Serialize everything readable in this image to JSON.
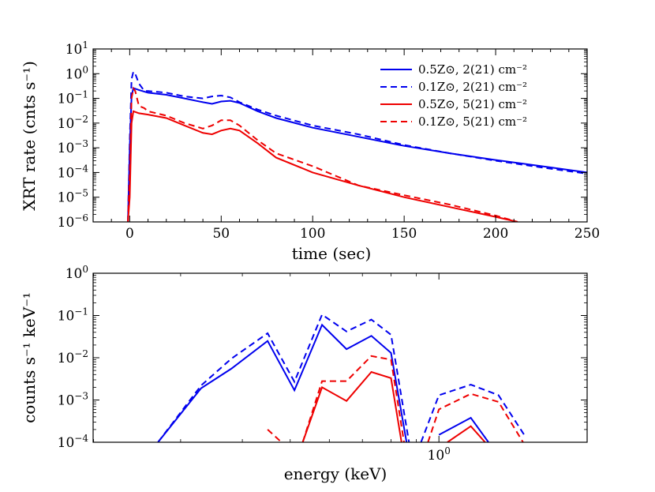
{
  "chart_data": [
    {
      "type": "line",
      "xlabel": "time (sec)",
      "ylabel": "XRT rate (cnts s⁻¹)",
      "xlim": [
        -20,
        250
      ],
      "ylim_log10": [
        -6,
        1
      ],
      "x_ticks": [
        {
          "value": 0,
          "label": "0"
        },
        {
          "value": 50,
          "label": "50"
        },
        {
          "value": 100,
          "label": "100"
        },
        {
          "value": 150,
          "label": "150"
        },
        {
          "value": 200,
          "label": "200"
        },
        {
          "value": 250,
          "label": "250"
        }
      ],
      "y_ticks": [
        {
          "exp": 1,
          "base": "10",
          "sup": "1"
        },
        {
          "exp": 0,
          "base": "10",
          "sup": "0"
        },
        {
          "exp": -1,
          "base": "10",
          "sup": "−1"
        },
        {
          "exp": -2,
          "base": "10",
          "sup": "−2"
        },
        {
          "exp": -3,
          "base": "10",
          "sup": "−3"
        },
        {
          "exp": -4,
          "base": "10",
          "sup": "−4"
        },
        {
          "exp": -5,
          "base": "10",
          "sup": "−5"
        },
        {
          "exp": -6,
          "base": "10",
          "sup": "−6"
        }
      ],
      "legend_position": "top-right",
      "series": [
        {
          "name": "0.5Z⊙, 2(21) cm⁻²",
          "color": "#0000ee",
          "style": "solid",
          "x": [
            -1,
            0,
            1,
            2,
            5,
            10,
            20,
            30,
            40,
            45,
            50,
            55,
            60,
            70,
            80,
            100,
            125,
            150,
            175,
            200,
            225,
            250
          ],
          "y": [
            1e-06,
            0.001,
            0.12,
            0.26,
            0.22,
            0.17,
            0.14,
            0.1,
            0.07,
            0.06,
            0.075,
            0.08,
            0.065,
            0.03,
            0.016,
            0.0065,
            0.0028,
            0.0012,
            0.0006,
            0.00032,
            0.00018,
            0.0001
          ]
        },
        {
          "name": "0.1Z⊙, 2(21) cm⁻²",
          "color": "#0000ee",
          "style": "dashed",
          "x": [
            -1,
            0,
            1,
            2,
            3,
            5,
            8,
            10,
            20,
            30,
            40,
            45,
            50,
            55,
            60,
            70,
            80,
            100,
            125,
            150,
            175,
            200,
            225,
            250
          ],
          "y": [
            1e-06,
            0.002,
            0.6,
            1.2,
            1.0,
            0.4,
            0.2,
            0.2,
            0.17,
            0.12,
            0.1,
            0.12,
            0.13,
            0.11,
            0.07,
            0.035,
            0.02,
            0.008,
            0.0035,
            0.0013,
            0.0006,
            0.0003,
            0.00016,
            9e-05
          ]
        },
        {
          "name": "0.5Z⊙, 5(21) cm⁻²",
          "color": "#ee0000",
          "style": "solid",
          "x": [
            -1,
            0,
            1,
            2,
            5,
            10,
            20,
            30,
            40,
            45,
            50,
            55,
            60,
            70,
            80,
            100,
            125,
            150,
            175,
            200,
            212
          ],
          "y": [
            1e-06,
            1e-05,
            0.01,
            0.03,
            0.025,
            0.022,
            0.016,
            0.008,
            0.004,
            0.0035,
            0.005,
            0.006,
            0.005,
            0.0015,
            0.0004,
            0.0001,
            3e-05,
            1e-05,
            4e-06,
            1.6e-06,
            1e-06
          ]
        },
        {
          "name": "0.1Z⊙, 5(21) cm⁻²",
          "color": "#ee0000",
          "style": "dashed",
          "x": [
            -1,
            0,
            1,
            2,
            3,
            5,
            8,
            10,
            20,
            30,
            40,
            45,
            50,
            55,
            60,
            70,
            80,
            100,
            125,
            150,
            175,
            200,
            212
          ],
          "y": [
            1e-06,
            0.0001,
            0.1,
            0.25,
            0.2,
            0.05,
            0.04,
            0.03,
            0.02,
            0.01,
            0.006,
            0.008,
            0.013,
            0.013,
            0.008,
            0.002,
            0.0006,
            0.00018,
            3e-05,
            1.2e-05,
            5e-06,
            1.8e-06,
            1e-06
          ]
        }
      ]
    },
    {
      "type": "line",
      "xlabel": "energy (keV)",
      "ylabel": "counts s⁻¹ keV⁻¹",
      "x_scale": "log",
      "xlim_log10": [
        -0.7,
        0.3
      ],
      "ylim_log10": [
        -4,
        0
      ],
      "x_ticks": [
        {
          "exp": 0,
          "base": "10",
          "sup": "0"
        }
      ],
      "y_ticks": [
        {
          "exp": 0,
          "base": "10",
          "sup": "0"
        },
        {
          "exp": -1,
          "base": "10",
          "sup": "−1"
        },
        {
          "exp": -2,
          "base": "10",
          "sup": "−2"
        },
        {
          "exp": -3,
          "base": "10",
          "sup": "−3"
        },
        {
          "exp": -4,
          "base": "10",
          "sup": "−4"
        }
      ],
      "series": [
        {
          "name": "0.5Z⊙, 2(21) cm⁻²",
          "color": "#0000ee",
          "style": "solid",
          "segments": [
            {
              "x": [
                0.27,
                0.33,
                0.38,
                0.45,
                0.51,
                0.58,
                0.65,
                0.73,
                0.8,
                0.86
              ],
              "y": [
                0.0001,
                0.0019,
                0.0055,
                0.025,
                0.0017,
                0.06,
                0.016,
                0.033,
                0.013,
                0.0001
              ]
            },
            {
              "x": [
                1.0,
                1.16,
                1.26
              ],
              "y": [
                0.00015,
                0.00038,
                0.0001
              ]
            }
          ]
        },
        {
          "name": "0.1Z⊙, 2(21) cm⁻²",
          "color": "#0000ee",
          "style": "dashed",
          "segments": [
            {
              "x": [
                0.27,
                0.33,
                0.38,
                0.45,
                0.51,
                0.58,
                0.65,
                0.73,
                0.8,
                0.87
              ],
              "y": [
                0.0001,
                0.0022,
                0.0095,
                0.038,
                0.0027,
                0.105,
                0.042,
                0.08,
                0.035,
                0.0001
              ]
            },
            {
              "x": [
                0.92,
                1.0,
                1.16,
                1.32,
                1.5
              ],
              "y": [
                0.0001,
                0.0013,
                0.0023,
                0.0013,
                0.00013
              ]
            }
          ]
        },
        {
          "name": "0.5Z⊙, 5(21) cm⁻²",
          "color": "#ee0000",
          "style": "solid",
          "segments": [
            {
              "x": [
                0.53,
                0.58,
                0.65,
                0.73,
                0.8,
                0.84
              ],
              "y": [
                0.0001,
                0.002,
                0.00095,
                0.0046,
                0.0033,
                0.0001
              ]
            },
            {
              "x": [
                1.04,
                1.16,
                1.24
              ],
              "y": [
                0.0001,
                0.00024,
                0.0001
              ]
            }
          ]
        },
        {
          "name": "0.1Z⊙, 5(21) cm⁻²",
          "color": "#ee0000",
          "style": "dashed",
          "segments": [
            {
              "x": [
                0.45,
                0.48
              ],
              "y": [
                0.0002,
                0.0001
              ]
            },
            {
              "x": [
                0.53,
                0.58,
                0.65,
                0.73,
                0.8,
                0.85
              ],
              "y": [
                0.0001,
                0.0028,
                0.0028,
                0.011,
                0.009,
                0.0001
              ]
            },
            {
              "x": [
                0.95,
                1.0,
                1.16,
                1.32,
                1.48
              ],
              "y": [
                0.0001,
                0.0006,
                0.0014,
                0.0009,
                0.0001
              ]
            }
          ]
        }
      ]
    }
  ]
}
